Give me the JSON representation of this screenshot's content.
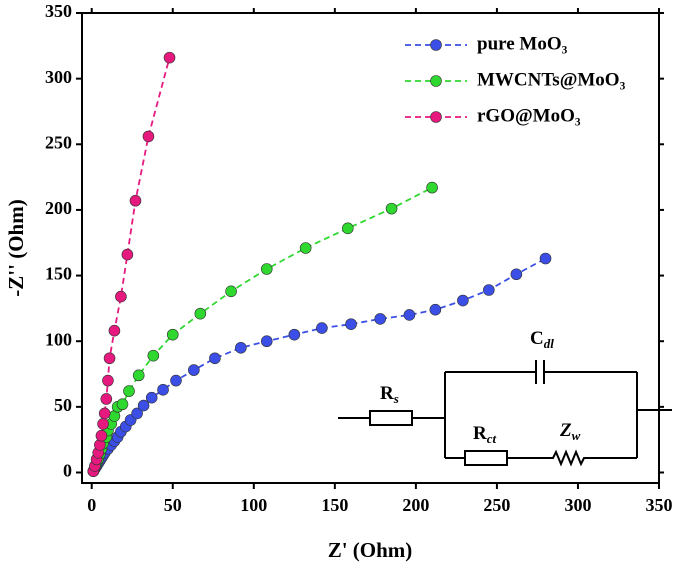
{
  "chart_data": {
    "type": "line",
    "x_label": "Z' (Ohm)",
    "y_label": "-Z'' (Ohm)",
    "xlim": [
      -6,
      350
    ],
    "ylim": [
      -8,
      350
    ],
    "xticks": [
      0,
      50,
      100,
      150,
      200,
      250,
      300,
      350
    ],
    "yticks": [
      0,
      50,
      100,
      150,
      200,
      250,
      300,
      350
    ],
    "legend": "upper right",
    "series": [
      {
        "name": "pure MoO₃",
        "color": "#3b4fe6",
        "x": [
          1,
          2,
          3,
          4,
          5,
          6,
          7,
          8,
          10,
          12,
          14,
          16,
          18,
          21,
          24,
          28,
          32,
          37,
          44,
          52,
          63,
          76,
          92,
          108,
          125,
          142,
          160,
          178,
          196,
          212,
          229,
          245,
          262,
          280
        ],
        "values": [
          1,
          3,
          5,
          7,
          9,
          11,
          13,
          15,
          18,
          21,
          24,
          27,
          31,
          35,
          40,
          45,
          51,
          57,
          63,
          70,
          78,
          87,
          95,
          100,
          105,
          110,
          113,
          117,
          120,
          124,
          131,
          139,
          151,
          163
        ]
      },
      {
        "name": "MWCNTs@MoO₃",
        "color": "#2fd82f",
        "x": [
          1,
          2,
          3,
          4,
          5,
          6,
          7,
          9,
          10,
          12,
          14,
          16,
          19,
          23,
          29,
          38,
          50,
          67,
          86,
          108,
          132,
          158,
          185,
          210
        ],
        "values": [
          1,
          4,
          7,
          10,
          14,
          18,
          22,
          27,
          32,
          37,
          43,
          50,
          52,
          62,
          74,
          89,
          105,
          121,
          138,
          155,
          171,
          186,
          201,
          217
        ]
      },
      {
        "name": "rGO@MoO₃",
        "color": "#e6197e",
        "x": [
          1,
          2,
          3,
          4,
          5,
          6,
          7,
          8,
          9,
          10,
          11,
          14,
          18,
          22,
          27,
          35,
          48
        ],
        "values": [
          1,
          5,
          10,
          15,
          21,
          28,
          37,
          45,
          56,
          70,
          87,
          108,
          134,
          166,
          207,
          256,
          316
        ]
      }
    ],
    "circuit": [
      {
        "main": "R",
        "sub": "s"
      },
      {
        "main": "C",
        "sub": "dl"
      },
      {
        "main": "R",
        "sub": "ct"
      },
      {
        "main": "Z",
        "sub": "w"
      }
    ]
  }
}
